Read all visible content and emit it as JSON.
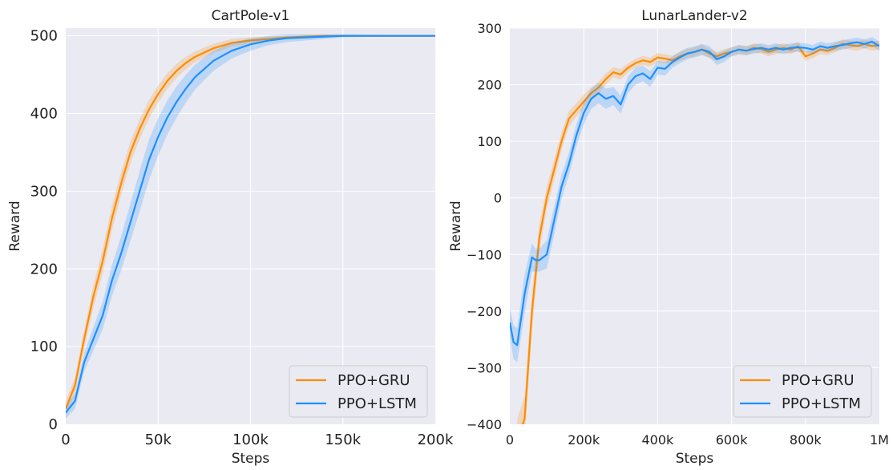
{
  "colors": {
    "gru": "#ff8c00",
    "lstm": "#1e90ff",
    "plot_background": "#eaeaf2",
    "grid": "#ffffff"
  },
  "chart_data": [
    {
      "type": "line",
      "title": "CartPole-v1",
      "xlabel": "Steps",
      "ylabel": "Reward",
      "xlim": [
        0,
        200000
      ],
      "ylim": [
        0,
        510
      ],
      "xticks": [
        0,
        50000,
        100000,
        150000,
        200000
      ],
      "xtick_labels": [
        "0",
        "50k",
        "100k",
        "150k",
        "200k"
      ],
      "yticks": [
        0,
        100,
        200,
        300,
        400,
        500
      ],
      "ytick_labels": [
        "0",
        "100",
        "200",
        "300",
        "400",
        "500"
      ],
      "grid": true,
      "legend": "lower-right",
      "series": [
        {
          "name": "PPO+GRU",
          "color": "#ff8c00",
          "x": [
            0,
            5000,
            10000,
            15000,
            20000,
            25000,
            30000,
            35000,
            40000,
            45000,
            50000,
            55000,
            60000,
            65000,
            70000,
            80000,
            90000,
            100000,
            110000,
            120000,
            130000,
            140000,
            150000,
            170000,
            200000
          ],
          "y": [
            20,
            50,
            110,
            165,
            210,
            265,
            310,
            350,
            380,
            405,
            425,
            442,
            455,
            465,
            473,
            484,
            491,
            494,
            496,
            498,
            499,
            500,
            500,
            500,
            500
          ],
          "band": [
            10,
            10,
            12,
            14,
            16,
            16,
            15,
            14,
            13,
            12,
            11,
            10,
            9,
            8,
            7,
            6,
            5,
            4,
            3,
            2,
            2,
            1,
            1,
            1,
            1
          ]
        },
        {
          "name": "PPO+LSTM",
          "color": "#1e90ff",
          "x": [
            0,
            5000,
            10000,
            15000,
            20000,
            25000,
            30000,
            35000,
            40000,
            45000,
            50000,
            55000,
            60000,
            65000,
            70000,
            80000,
            90000,
            100000,
            110000,
            120000,
            130000,
            140000,
            150000,
            170000,
            200000
          ],
          "y": [
            15,
            30,
            80,
            110,
            140,
            185,
            220,
            260,
            300,
            340,
            370,
            395,
            415,
            432,
            447,
            468,
            481,
            489,
            494,
            497,
            498,
            499,
            500,
            500,
            500
          ],
          "band": [
            8,
            10,
            12,
            15,
            18,
            20,
            22,
            24,
            26,
            26,
            24,
            22,
            20,
            18,
            16,
            13,
            10,
            8,
            6,
            5,
            4,
            3,
            2,
            1,
            1
          ]
        }
      ]
    },
    {
      "type": "line",
      "title": "LunarLander-v2",
      "xlabel": "Steps",
      "ylabel": "Reward",
      "xlim": [
        0,
        1000000
      ],
      "ylim": [
        -400,
        300
      ],
      "xticks": [
        0,
        200000,
        400000,
        600000,
        800000,
        1000000
      ],
      "xtick_labels": [
        "0",
        "200k",
        "400k",
        "600k",
        "800k",
        "1M"
      ],
      "yticks": [
        -400,
        -300,
        -200,
        -100,
        0,
        100,
        200,
        300
      ],
      "ytick_labels": [
        "−400",
        "−300",
        "−200",
        "−100",
        "0",
        "100",
        "200",
        "300"
      ],
      "grid": true,
      "legend": "lower-right",
      "series": [
        {
          "name": "PPO+GRU",
          "color": "#ff8c00",
          "x": [
            20000,
            40000,
            60000,
            80000,
            100000,
            120000,
            140000,
            160000,
            180000,
            200000,
            220000,
            240000,
            260000,
            280000,
            300000,
            320000,
            340000,
            360000,
            380000,
            400000,
            420000,
            440000,
            460000,
            480000,
            500000,
            520000,
            540000,
            560000,
            580000,
            600000,
            620000,
            640000,
            660000,
            680000,
            700000,
            720000,
            740000,
            760000,
            780000,
            800000,
            820000,
            840000,
            860000,
            880000,
            900000,
            920000,
            940000,
            960000,
            980000,
            1000000
          ],
          "y": [
            -430,
            -390,
            -200,
            -70,
            0,
            50,
            100,
            140,
            155,
            170,
            185,
            195,
            210,
            222,
            218,
            230,
            238,
            243,
            240,
            248,
            246,
            243,
            250,
            255,
            258,
            262,
            255,
            250,
            255,
            258,
            262,
            260,
            265,
            263,
            258,
            262,
            265,
            262,
            268,
            250,
            255,
            262,
            260,
            265,
            272,
            270,
            268,
            272,
            268,
            270
          ],
          "band": [
            40,
            40,
            35,
            25,
            20,
            18,
            16,
            14,
            12,
            12,
            10,
            10,
            10,
            9,
            9,
            8,
            8,
            8,
            8,
            8,
            8,
            8,
            8,
            8,
            8,
            8,
            8,
            8,
            8,
            8,
            8,
            8,
            8,
            8,
            8,
            8,
            8,
            8,
            8,
            8,
            8,
            8,
            8,
            8,
            8,
            8,
            8,
            8,
            8,
            8
          ]
        },
        {
          "name": "PPO+LSTM",
          "color": "#1e90ff",
          "x": [
            0,
            10000,
            20000,
            40000,
            60000,
            70000,
            80000,
            100000,
            120000,
            140000,
            160000,
            180000,
            200000,
            220000,
            240000,
            260000,
            280000,
            300000,
            320000,
            340000,
            360000,
            380000,
            400000,
            420000,
            440000,
            460000,
            480000,
            500000,
            520000,
            540000,
            560000,
            580000,
            600000,
            620000,
            640000,
            660000,
            680000,
            700000,
            720000,
            740000,
            760000,
            780000,
            800000,
            820000,
            840000,
            860000,
            880000,
            900000,
            920000,
            940000,
            960000,
            980000,
            1000000
          ],
          "y": [
            -220,
            -255,
            -260,
            -170,
            -105,
            -110,
            -110,
            -100,
            -40,
            20,
            60,
            110,
            150,
            175,
            185,
            175,
            180,
            165,
            200,
            215,
            220,
            210,
            230,
            228,
            240,
            248,
            255,
            258,
            262,
            258,
            245,
            250,
            258,
            262,
            260,
            263,
            265,
            262,
            265,
            262,
            265,
            266,
            265,
            262,
            268,
            265,
            268,
            270,
            273,
            275,
            272,
            276,
            268
          ],
          "band": [
            25,
            30,
            30,
            35,
            25,
            20,
            20,
            25,
            25,
            22,
            20,
            20,
            20,
            18,
            18,
            18,
            16,
            16,
            15,
            15,
            14,
            14,
            12,
            12,
            10,
            10,
            10,
            10,
            10,
            10,
            10,
            10,
            8,
            8,
            8,
            8,
            8,
            8,
            8,
            8,
            8,
            8,
            8,
            8,
            8,
            8,
            8,
            8,
            8,
            8,
            8,
            8,
            8
          ]
        }
      ]
    }
  ]
}
